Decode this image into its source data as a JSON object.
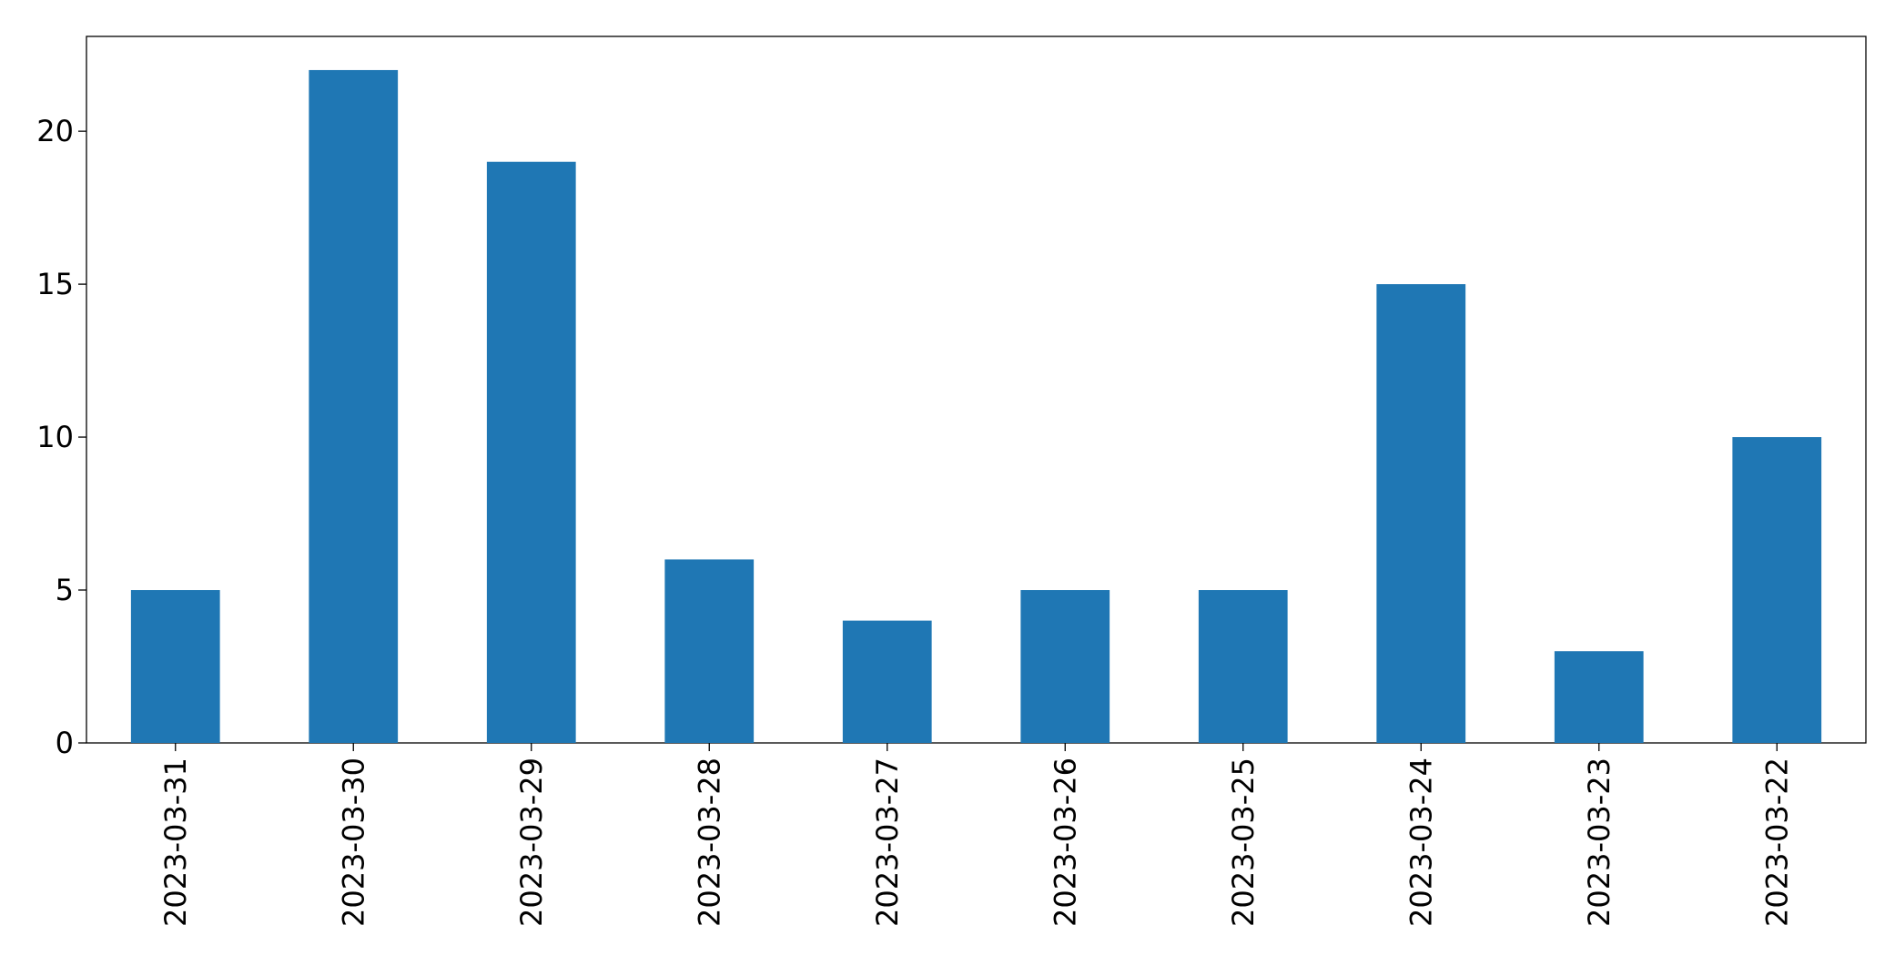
{
  "chart_data": {
    "type": "bar",
    "categories": [
      "2023-03-31",
      "2023-03-30",
      "2023-03-29",
      "2023-03-28",
      "2023-03-27",
      "2023-03-26",
      "2023-03-25",
      "2023-03-24",
      "2023-03-23",
      "2023-03-22"
    ],
    "values": [
      5,
      22,
      19,
      6,
      4,
      5,
      5,
      15,
      3,
      10
    ],
    "color": "#1f77b4",
    "ylim": [
      0,
      23.1
    ],
    "yticks": [
      0,
      5,
      10,
      15,
      20
    ],
    "grid": false
  }
}
